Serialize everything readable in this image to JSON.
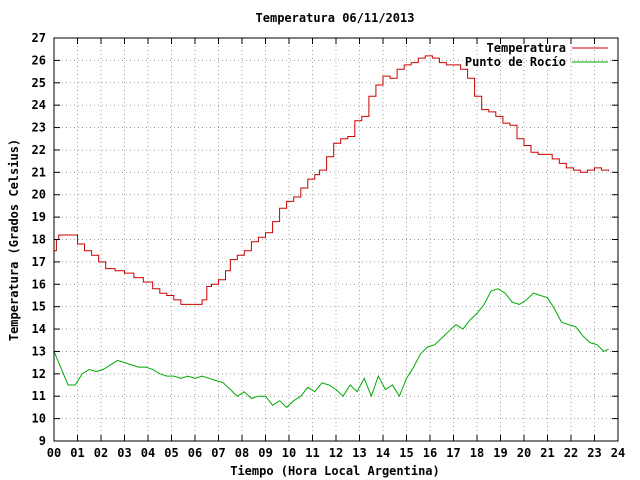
{
  "chart_data": {
    "type": "line",
    "title": "Temperatura 06/11/2013",
    "xlabel": "Tiempo (Hora Local Argentina)",
    "ylabel": "Temperatura (Grados Celsius)",
    "xlim": [
      0,
      24
    ],
    "ylim": [
      9,
      27
    ],
    "x_ticks": [
      "00",
      "01",
      "02",
      "03",
      "04",
      "05",
      "06",
      "07",
      "08",
      "09",
      "10",
      "11",
      "12",
      "13",
      "14",
      "15",
      "16",
      "17",
      "18",
      "19",
      "20",
      "21",
      "22",
      "23",
      "24"
    ],
    "y_ticks": [
      9,
      10,
      11,
      12,
      13,
      14,
      15,
      16,
      17,
      18,
      19,
      20,
      21,
      22,
      23,
      24,
      25,
      26,
      27
    ],
    "grid": true,
    "legend_position": "top-right",
    "series": [
      {
        "name": "Temperatura",
        "color": "#cc0000",
        "x": [
          0,
          0.1,
          0.2,
          0.4,
          0.8,
          1.0,
          1.3,
          1.6,
          1.9,
          2.2,
          2.6,
          3.0,
          3.4,
          3.8,
          4.2,
          4.5,
          4.8,
          5.1,
          5.4,
          5.8,
          6.0,
          6.3,
          6.5,
          6.7,
          7.0,
          7.3,
          7.5,
          7.8,
          8.1,
          8.4,
          8.7,
          9.0,
          9.3,
          9.6,
          9.9,
          10.2,
          10.5,
          10.8,
          11.1,
          11.3,
          11.6,
          11.9,
          12.2,
          12.5,
          12.8,
          13.1,
          13.4,
          13.7,
          14.0,
          14.3,
          14.6,
          14.9,
          15.2,
          15.5,
          15.8,
          16.1,
          16.4,
          16.7,
          17.0,
          17.3,
          17.6,
          17.9,
          18.2,
          18.5,
          18.8,
          19.1,
          19.4,
          19.7,
          20.0,
          20.3,
          20.6,
          20.9,
          21.2,
          21.5,
          21.8,
          22.1,
          22.4,
          22.7,
          23.0,
          23.3,
          23.6
        ],
        "y": [
          17.5,
          18.0,
          18.2,
          18.2,
          18.2,
          17.8,
          17.5,
          17.3,
          17.0,
          16.7,
          16.6,
          16.5,
          16.3,
          16.1,
          15.8,
          15.6,
          15.5,
          15.3,
          15.1,
          15.1,
          15.1,
          15.3,
          15.9,
          16.0,
          16.2,
          16.6,
          17.1,
          17.3,
          17.5,
          17.9,
          18.1,
          18.3,
          18.8,
          19.4,
          19.7,
          19.9,
          20.3,
          20.7,
          20.9,
          21.1,
          21.7,
          22.3,
          22.5,
          22.6,
          23.3,
          23.5,
          24.4,
          24.9,
          25.3,
          25.2,
          25.6,
          25.8,
          25.9,
          26.1,
          26.2,
          26.1,
          25.9,
          25.8,
          25.8,
          25.6,
          25.2,
          24.4,
          23.8,
          23.7,
          23.5,
          23.2,
          23.1,
          22.5,
          22.2,
          21.9,
          21.8,
          21.8,
          21.6,
          21.4,
          21.2,
          21.1,
          21.0,
          21.1,
          21.2,
          21.1,
          21.05
        ]
      },
      {
        "name": "Punto de Rocío",
        "color": "#00aa00",
        "x": [
          0,
          0.2,
          0.4,
          0.6,
          0.9,
          1.2,
          1.5,
          1.8,
          2.1,
          2.4,
          2.7,
          3.0,
          3.3,
          3.6,
          3.9,
          4.2,
          4.5,
          4.8,
          5.1,
          5.4,
          5.7,
          6.0,
          6.3,
          6.6,
          6.9,
          7.2,
          7.5,
          7.8,
          8.1,
          8.4,
          8.7,
          9.0,
          9.3,
          9.6,
          9.9,
          10.2,
          10.5,
          10.8,
          11.1,
          11.4,
          11.7,
          12.0,
          12.3,
          12.6,
          12.9,
          13.2,
          13.5,
          13.8,
          14.1,
          14.4,
          14.7,
          15.0,
          15.3,
          15.6,
          15.9,
          16.2,
          16.5,
          16.8,
          17.1,
          17.4,
          17.7,
          18.0,
          18.3,
          18.6,
          18.9,
          19.2,
          19.5,
          19.8,
          20.1,
          20.4,
          20.7,
          21.0,
          21.3,
          21.6,
          21.9,
          22.2,
          22.5,
          22.8,
          23.1,
          23.4,
          23.6
        ],
        "y": [
          13.0,
          12.5,
          12.0,
          11.5,
          11.5,
          12.0,
          12.2,
          12.1,
          12.2,
          12.4,
          12.6,
          12.5,
          12.4,
          12.3,
          12.3,
          12.2,
          12.0,
          11.9,
          11.9,
          11.8,
          11.9,
          11.8,
          11.9,
          11.8,
          11.7,
          11.6,
          11.3,
          11.0,
          11.2,
          10.9,
          11.0,
          11.0,
          10.6,
          10.8,
          10.5,
          10.8,
          11.0,
          11.4,
          11.2,
          11.6,
          11.5,
          11.3,
          11.0,
          11.5,
          11.2,
          11.8,
          11.0,
          11.9,
          11.3,
          11.5,
          11.0,
          11.8,
          12.3,
          12.9,
          13.2,
          13.3,
          13.6,
          13.9,
          14.2,
          14.0,
          14.4,
          14.7,
          15.1,
          15.7,
          15.8,
          15.6,
          15.2,
          15.1,
          15.3,
          15.6,
          15.5,
          15.4,
          14.9,
          14.3,
          14.2,
          14.1,
          13.7,
          13.4,
          13.3,
          13.0,
          13.1
        ]
      }
    ]
  }
}
